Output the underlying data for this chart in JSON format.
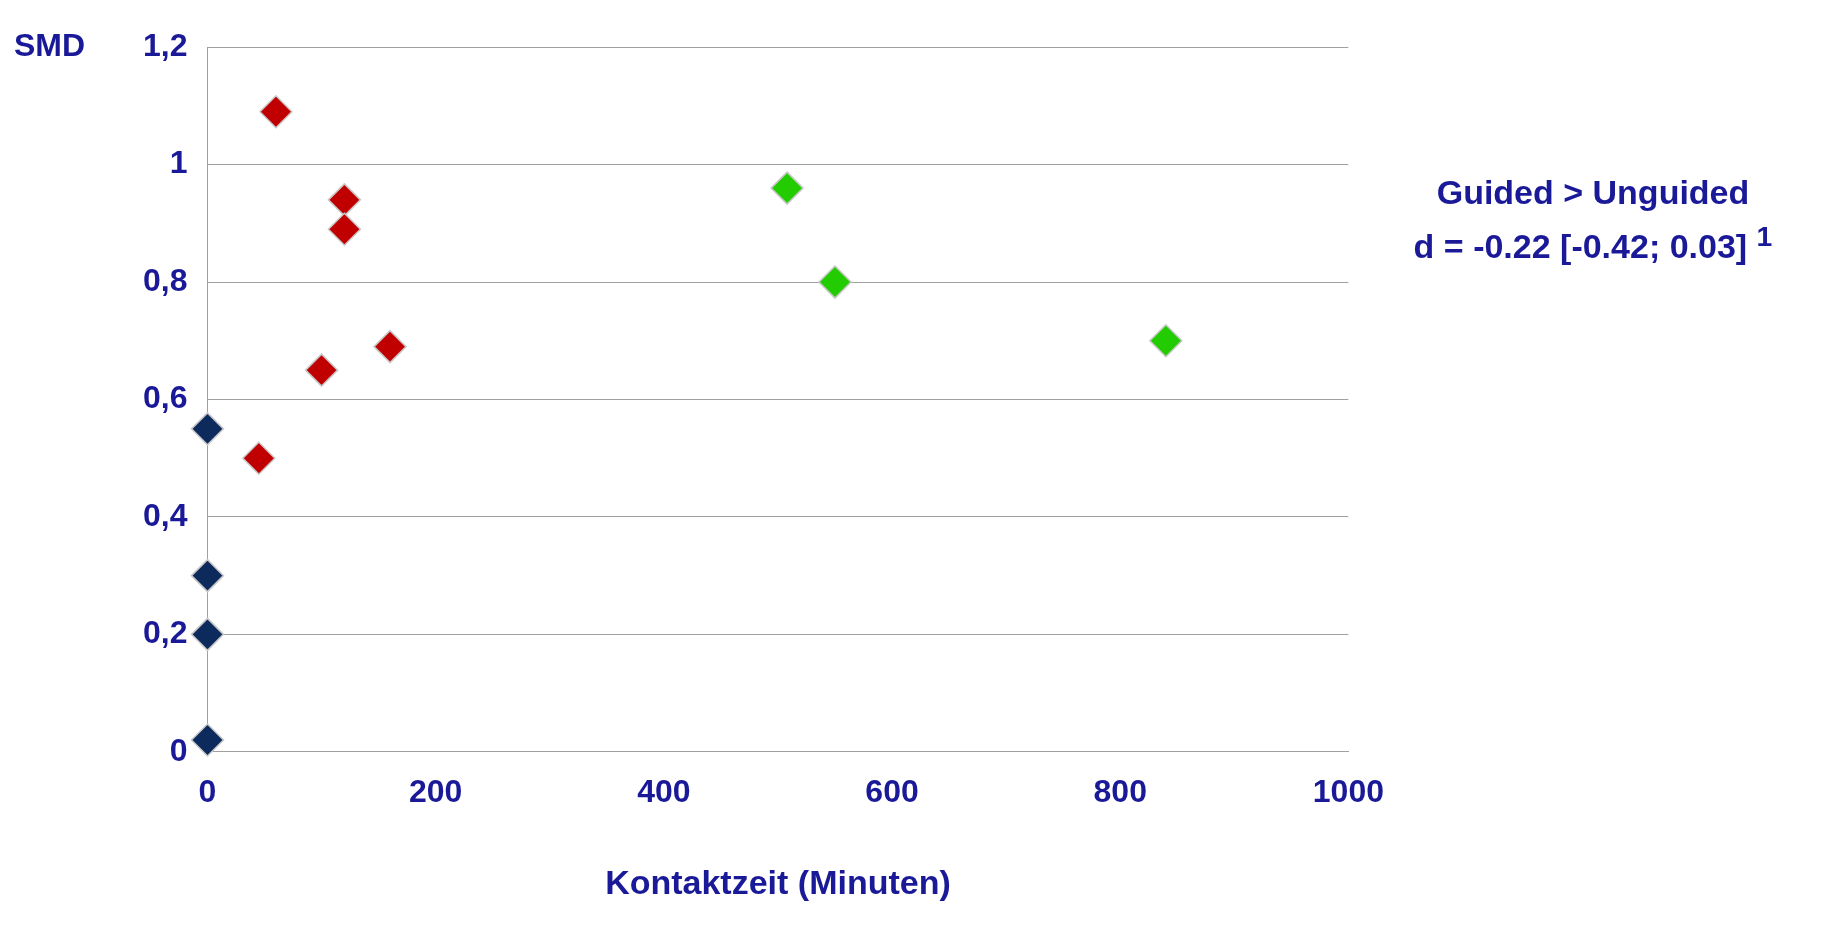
{
  "chart_data": {
    "type": "scatter",
    "ylabel": "SMD",
    "xlabel": "Kontaktzeit (Minuten)",
    "annotations": [
      "Guided > Unguided",
      "d = -0.22 [-0.42; 0.03] $^{1}$"
    ],
    "series": [
      {
        "color": "#0d2a5c",
        "x": [
          0,
          0,
          0,
          0
        ],
        "values": [
          0.55,
          0.3,
          0.2,
          0.02
        ]
      },
      {
        "color": "#c00000",
        "x": [
          60,
          120,
          120,
          160,
          100,
          45
        ],
        "values": [
          1.09,
          0.94,
          0.89,
          0.69,
          0.65,
          0.5
        ]
      },
      {
        "color": "#22cc00",
        "x": [
          508,
          550,
          840
        ],
        "values": [
          0.96,
          0.8,
          0.7
        ]
      }
    ],
    "xlim": [
      0,
      1000
    ],
    "xticks": [
      0,
      200,
      400,
      600,
      800,
      1000
    ],
    "ylim": [
      0,
      1.2
    ],
    "yticks": [
      {
        "value": 0,
        "label": "0"
      },
      {
        "value": 0.2,
        "label": "0,2"
      },
      {
        "value": 0.4,
        "label": "0,4"
      },
      {
        "value": 0.6,
        "label": "0,6"
      },
      {
        "value": 0.8,
        "label": "0,8"
      },
      {
        "value": 1,
        "label": "1"
      },
      {
        "value": 1.2,
        "label": "1,2"
      }
    ],
    "grid": "y",
    "legend": false,
    "marker": "diamond"
  }
}
